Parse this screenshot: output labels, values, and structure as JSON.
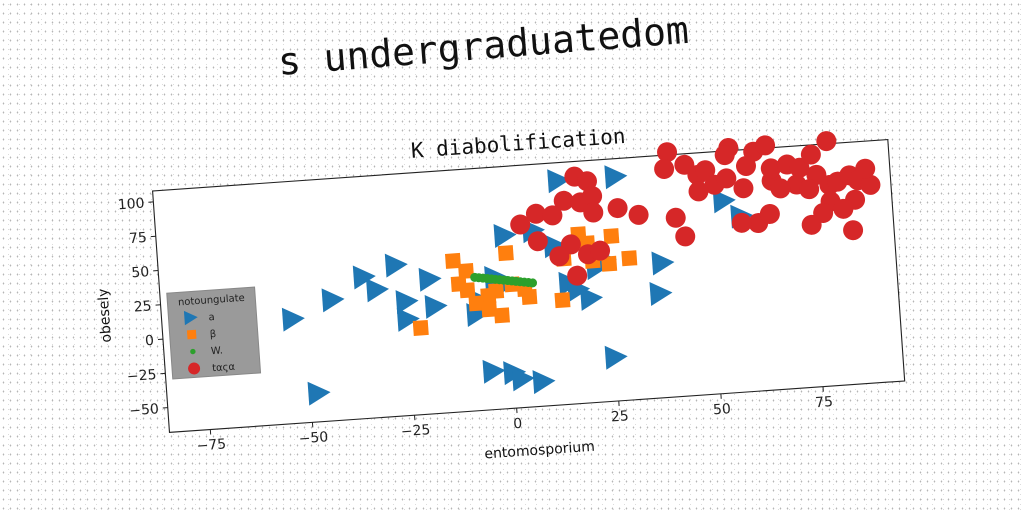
{
  "suptitle": "s undergraduatedom",
  "chart_data": {
    "type": "scatter",
    "title": "K diabolification",
    "xlabel": "entomosporium",
    "ylabel": "obesely",
    "xlim": [
      -85,
      95
    ],
    "ylim": [
      -68,
      108
    ],
    "xticks": [
      -75,
      -50,
      -25,
      0,
      25,
      50,
      75
    ],
    "yticks": [
      100,
      75,
      50,
      25,
      0,
      -25,
      -50
    ],
    "grid": false,
    "legend": {
      "title": "notoungulate",
      "position": "center-left"
    },
    "series": [
      {
        "name": "a",
        "marker": "triangle-right",
        "color": "#1f77b4",
        "points": [
          [
            -53,
            8
          ],
          [
            -43,
            20
          ],
          [
            -35,
            35
          ],
          [
            -32,
            25
          ],
          [
            -27,
            42
          ],
          [
            -25,
            15
          ],
          [
            -25,
            2
          ],
          [
            -19,
            30
          ],
          [
            -18,
            10
          ],
          [
            -8,
            2
          ],
          [
            -6,
            10
          ],
          [
            -3,
            28
          ],
          [
            -5,
            -40
          ],
          [
            0,
            -42
          ],
          [
            2,
            -47
          ],
          [
            7,
            -50
          ],
          [
            0,
            58
          ],
          [
            7,
            60
          ],
          [
            12,
            48
          ],
          [
            14,
            95
          ],
          [
            28,
            95
          ],
          [
            15,
            20
          ],
          [
            17,
            15
          ],
          [
            20,
            8
          ],
          [
            22,
            30
          ],
          [
            24,
            35
          ],
          [
            25,
            -36
          ],
          [
            38,
            30
          ],
          [
            37,
            8
          ],
          [
            54,
            72
          ],
          [
            58,
            60
          ],
          [
            -48,
            -47
          ],
          [
            -1,
            22
          ]
        ]
      },
      {
        "name": "β",
        "marker": "square",
        "color": "#ff7f0e",
        "points": [
          [
            -13,
            42
          ],
          [
            -10,
            34
          ],
          [
            -12,
            25
          ],
          [
            -10,
            20
          ],
          [
            -3,
            18
          ],
          [
            -5,
            15
          ],
          [
            -8,
            10
          ],
          [
            -5,
            5
          ],
          [
            0,
            45
          ],
          [
            1,
            22
          ],
          [
            4,
            18
          ],
          [
            5,
            12
          ],
          [
            13,
            8
          ],
          [
            18,
            55
          ],
          [
            20,
            48
          ],
          [
            21,
            35
          ],
          [
            23,
            40
          ],
          [
            26,
            52
          ],
          [
            25,
            32
          ],
          [
            30,
            35
          ],
          [
            -22,
            -5
          ],
          [
            -2,
            0
          ],
          [
            14,
            38
          ]
        ]
      },
      {
        "name": "W.",
        "marker": "circle-small",
        "color": "#2ca02c",
        "points": [
          [
            -8,
            29
          ],
          [
            -7,
            28.5
          ],
          [
            -6,
            28
          ],
          [
            -5,
            27.5
          ],
          [
            -4,
            27
          ],
          [
            -3,
            26.5
          ],
          [
            -2,
            26
          ],
          [
            -1,
            25.5
          ],
          [
            0,
            25
          ],
          [
            1,
            24.5
          ],
          [
            2,
            24
          ],
          [
            3,
            23.5
          ],
          [
            4,
            23
          ],
          [
            5,
            22.5
          ],
          [
            6,
            22
          ]
        ]
      },
      {
        "name": "tαςα",
        "marker": "circle",
        "color": "#d62728",
        "points": [
          [
            18,
            97
          ],
          [
            21,
            93
          ],
          [
            15,
            80
          ],
          [
            19,
            78
          ],
          [
            22,
            82
          ],
          [
            8,
            72
          ],
          [
            12,
            70
          ],
          [
            22,
            70
          ],
          [
            28,
            72
          ],
          [
            4,
            65
          ],
          [
            8,
            52
          ],
          [
            16,
            48
          ],
          [
            20,
            40
          ],
          [
            23,
            42
          ],
          [
            17,
            25
          ],
          [
            13,
            40
          ],
          [
            41,
            110
          ],
          [
            45,
            100
          ],
          [
            40,
            98
          ],
          [
            48,
            92
          ],
          [
            50,
            95
          ],
          [
            56,
            110
          ],
          [
            62,
            106
          ],
          [
            60,
            96
          ],
          [
            52,
            84
          ],
          [
            55,
            88
          ],
          [
            59,
            80
          ],
          [
            66,
            84
          ],
          [
            66,
            93
          ],
          [
            70,
            95
          ],
          [
            73,
            92
          ],
          [
            77,
            86
          ],
          [
            72,
            80
          ],
          [
            68,
            78
          ],
          [
            75,
            76
          ],
          [
            80,
            78
          ],
          [
            82,
            80
          ],
          [
            85,
            84
          ],
          [
            87,
            80
          ],
          [
            90,
            76
          ],
          [
            86,
            66
          ],
          [
            80,
            66
          ],
          [
            78,
            58
          ],
          [
            83,
            60
          ],
          [
            75,
            50
          ],
          [
            62,
            54
          ],
          [
            65,
            60
          ],
          [
            58,
            55
          ],
          [
            42,
            62
          ],
          [
            44,
            48
          ],
          [
            55,
            105
          ],
          [
            76,
            101
          ],
          [
            89,
            88
          ],
          [
            85,
            44
          ],
          [
            80,
            110
          ],
          [
            65,
            110
          ],
          [
            48,
            80
          ],
          [
            33,
            66
          ]
        ]
      }
    ]
  }
}
